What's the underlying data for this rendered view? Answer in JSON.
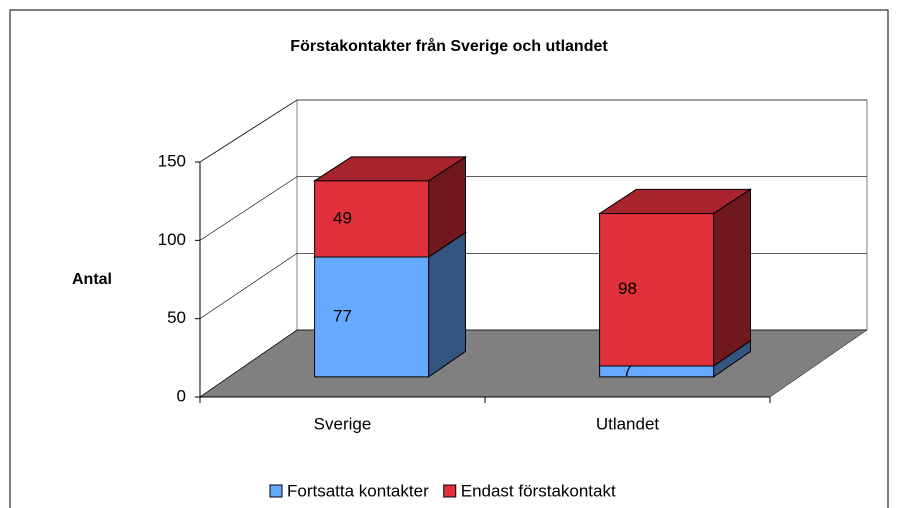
{
  "chart_data": {
    "type": "bar3d_stacked",
    "title": "Förstakontakter från Sverige och utlandet",
    "y_label": "Antal",
    "categories": [
      "Sverige",
      "Utlandet"
    ],
    "series": [
      {
        "name": "Fortsatta kontakter",
        "color": "#66aaff",
        "values": [
          77,
          7
        ]
      },
      {
        "name": "Endast förstakontakt",
        "color": "#e0303a",
        "values": [
          49,
          98
        ]
      }
    ],
    "ylim": [
      0,
      150
    ],
    "yticks": [
      0,
      50,
      100,
      150
    ],
    "grid": true,
    "legend": "bottom"
  }
}
